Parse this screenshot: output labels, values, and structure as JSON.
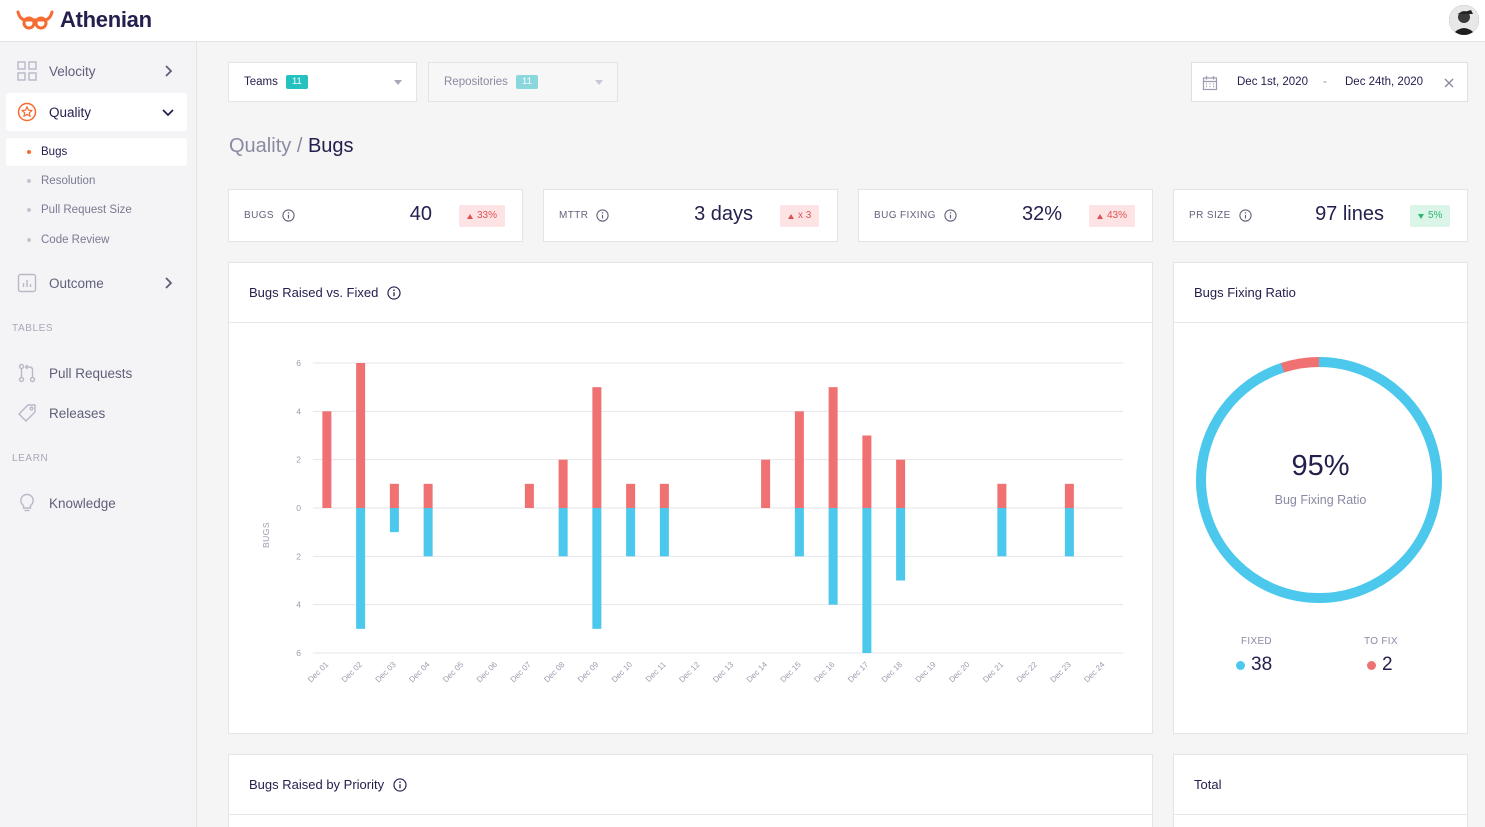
{
  "brand": {
    "name": "Athenian",
    "accent": "#f66b32"
  },
  "sidebar": {
    "velocity": "Velocity",
    "quality": "Quality",
    "quality_sub": [
      "Bugs",
      "Resolution",
      "Pull Request Size",
      "Code Review"
    ],
    "outcome": "Outcome",
    "tables_label": "TABLES",
    "pull_requests": "Pull Requests",
    "releases": "Releases",
    "learn_label": "LEARN",
    "knowledge": "Knowledge"
  },
  "filters": {
    "teams_label": "Teams",
    "teams_count": "11",
    "repos_label": "Repositories",
    "repos_count": "11",
    "date_from": "Dec 1st, 2020",
    "date_sep": "-",
    "date_to": "Dec 24th, 2020"
  },
  "breadcrumb": {
    "parent": "Quality",
    "sep": "/",
    "current": "Bugs"
  },
  "kpis": [
    {
      "label": "BUGS",
      "value": "40",
      "delta": "33%",
      "dir": "up"
    },
    {
      "label": "MTTR",
      "value": "3 days",
      "delta": "x 3",
      "dir": "up"
    },
    {
      "label": "BUG FIXING",
      "value": "32%",
      "delta": "43%",
      "dir": "up"
    },
    {
      "label": "PR SIZE",
      "value": "97 lines",
      "delta": "5%",
      "dir": "down"
    }
  ],
  "panels": {
    "raised_vs_fixed": "Bugs Raised vs. Fixed",
    "fixing_ratio": "Bugs Fixing Ratio",
    "by_priority": "Bugs Raised by Priority",
    "total": "Total"
  },
  "ratio": {
    "value": "95%",
    "caption": "Bug Fixing Ratio",
    "fixed_label": "FIXED",
    "fixed_value": "38",
    "tofix_label": "TO FIX",
    "tofix_value": "2",
    "fixed_fraction": 0.95
  },
  "colors": {
    "raised": "#f07171",
    "fixed": "#4bc8ec"
  },
  "chart_data": {
    "type": "bar",
    "title": "Bugs Raised vs. Fixed",
    "ylabel": "BUGS",
    "xlabel": "",
    "categories": [
      "Dec 01",
      "Dec 02",
      "Dec 03",
      "Dec 04",
      "Dec 05",
      "Dec 06",
      "Dec 07",
      "Dec 08",
      "Dec 09",
      "Dec 10",
      "Dec 11",
      "Dec 12",
      "Dec 13",
      "Dec 14",
      "Dec 15",
      "Dec 16",
      "Dec 17",
      "Dec 18",
      "Dec 19",
      "Dec 20",
      "Dec 21",
      "Dec 22",
      "Dec 23",
      "Dec 24"
    ],
    "yticks": [
      "6",
      "4",
      "2",
      "0",
      "2",
      "4",
      "6"
    ],
    "ylim": [
      -6,
      6
    ],
    "series": [
      {
        "values": [
          4,
          6,
          1,
          1,
          0,
          0,
          1,
          2,
          5,
          1,
          1,
          0,
          0,
          2,
          4,
          5,
          3,
          2,
          0,
          0,
          1,
          0,
          1,
          0
        ]
      },
      {
        "values": [
          0,
          5,
          1,
          2,
          0,
          0,
          0,
          2,
          5,
          2,
          2,
          0,
          0,
          0,
          2,
          4,
          6,
          3,
          0,
          0,
          2,
          0,
          2,
          0
        ]
      }
    ],
    "grid": true
  }
}
